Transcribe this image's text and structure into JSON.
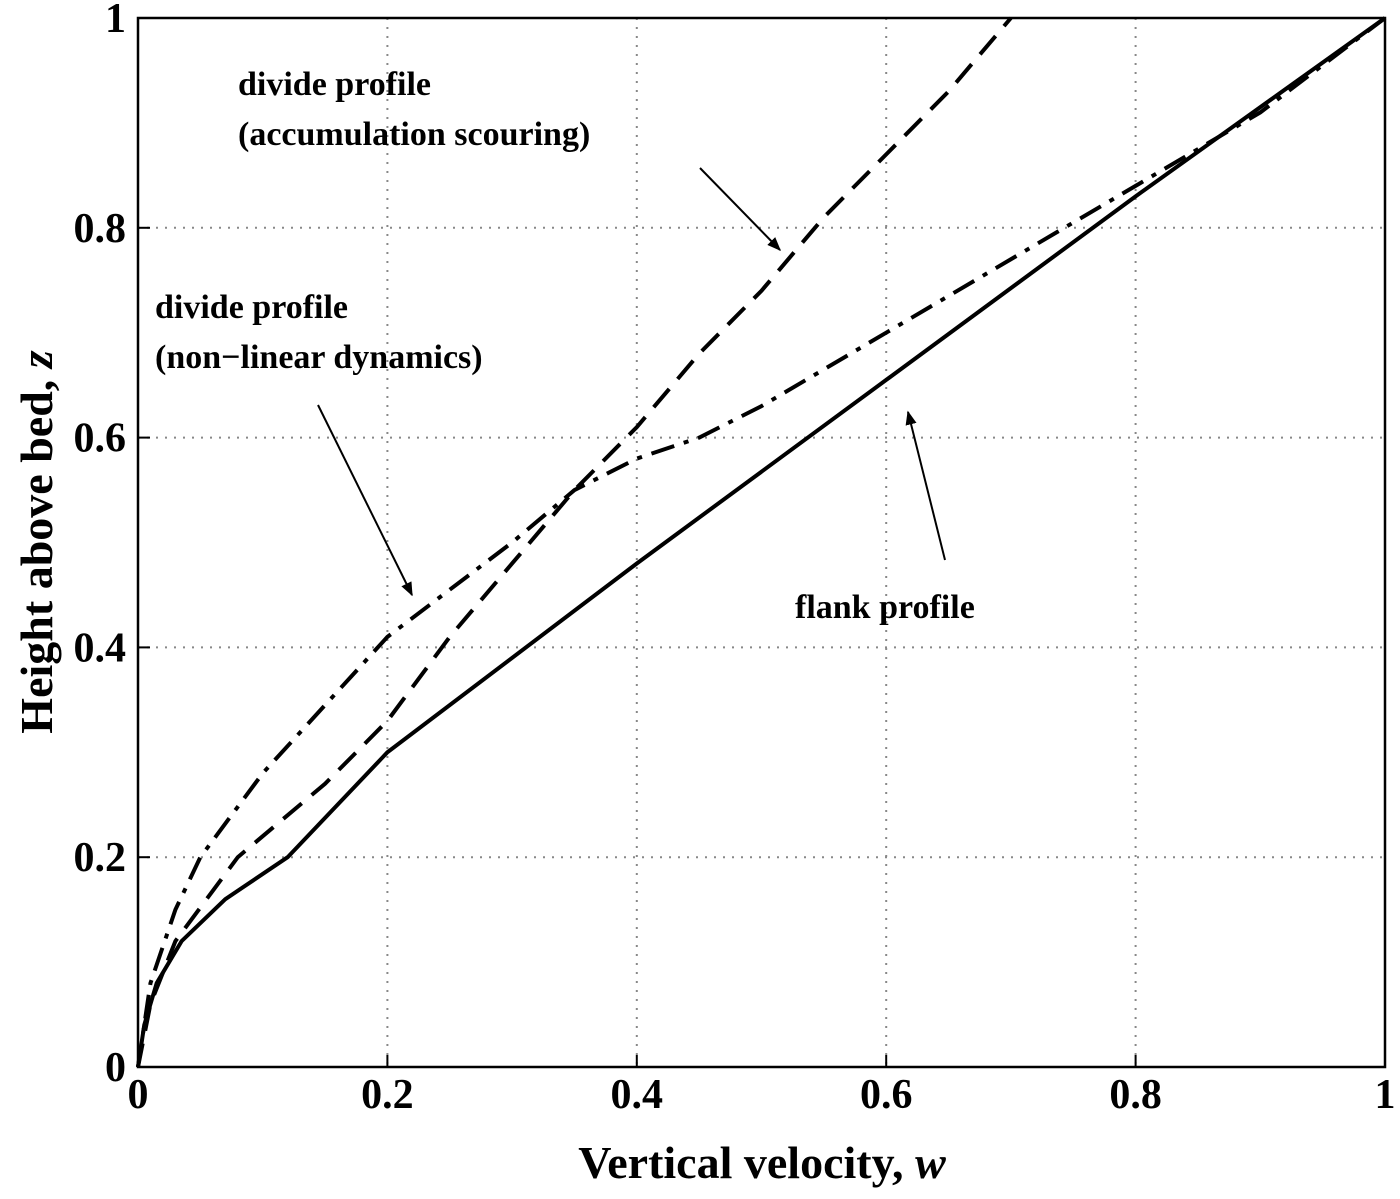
{
  "chart_data": {
    "type": "line",
    "xlabel": [
      "Vertical velocity, ",
      "w"
    ],
    "ylabel": [
      "Height above bed, ",
      "z"
    ],
    "xlim": [
      0,
      1
    ],
    "ylim": [
      0,
      1
    ],
    "xticks": [
      0,
      0.2,
      0.4,
      0.6,
      0.8,
      1
    ],
    "yticks": [
      0,
      0.2,
      0.4,
      0.6,
      0.8,
      1
    ],
    "grid": true,
    "series": [
      {
        "color": "#000000",
        "style": "solid",
        "x": [
          0,
          0.005,
          0.015,
          0.035,
          0.07,
          0.12,
          0.2,
          0.4,
          0.6,
          0.8,
          1
        ],
        "values": [
          0,
          0.04,
          0.08,
          0.12,
          0.16,
          0.2,
          0.3,
          0.48,
          0.655,
          0.83,
          1
        ]
      },
      {
        "color": "#000000",
        "style": "dashed",
        "x": [
          0,
          0.01,
          0.03,
          0.08,
          0.15,
          0.2,
          0.25,
          0.3,
          0.35,
          0.4,
          0.45,
          0.5,
          0.55,
          0.6,
          0.65,
          0.7
        ],
        "values": [
          0,
          0.06,
          0.12,
          0.2,
          0.27,
          0.33,
          0.41,
          0.48,
          0.55,
          0.61,
          0.68,
          0.74,
          0.81,
          0.87,
          0.93,
          1
        ]
      },
      {
        "color": "#000000",
        "style": "dashdot",
        "x": [
          0,
          0.01,
          0.03,
          0.05,
          0.1,
          0.2,
          0.3,
          0.35,
          0.4,
          0.45,
          0.5,
          0.6,
          0.7,
          0.8,
          0.9,
          1
        ],
        "values": [
          0,
          0.08,
          0.15,
          0.2,
          0.28,
          0.41,
          0.5,
          0.55,
          0.58,
          0.6,
          0.63,
          0.7,
          0.77,
          0.84,
          0.91,
          1
        ]
      }
    ],
    "annotations": [
      [
        "divide profile",
        "(accumulation scouring)"
      ],
      [
        "divide profile",
        "(non−linear dynamics)"
      ],
      [
        "flank profile"
      ]
    ]
  }
}
